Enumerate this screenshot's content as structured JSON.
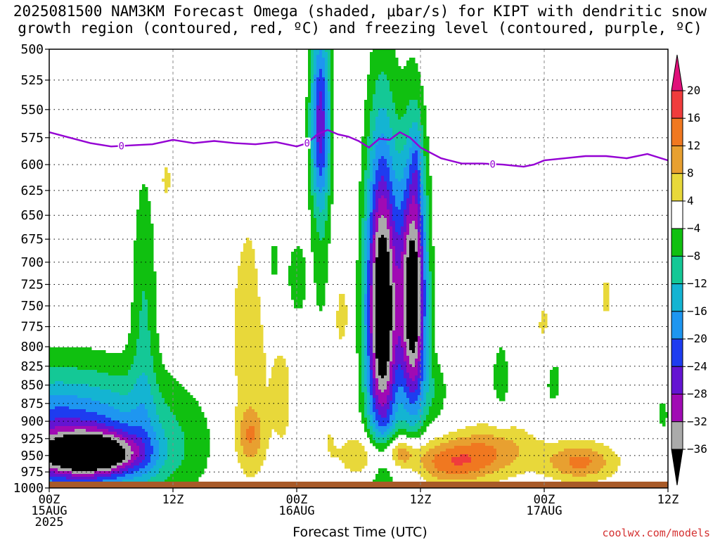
{
  "chart_data": {
    "type": "heatmap",
    "title_line1": "2025081500 NAM3KM Forecast Omega (shaded, μbar/s) for KIPT with dendritic snow",
    "title_line2": "growth region (contoured, red, ºC) and freezing level (contoured, purple, ºC)",
    "xlabel": "Forecast Time (UTC)",
    "credit": "coolwx.com/models",
    "y_axis": {
      "quantity": "pressure (mb)",
      "ticks": [
        500,
        525,
        550,
        575,
        600,
        625,
        650,
        675,
        700,
        725,
        750,
        775,
        800,
        825,
        850,
        875,
        900,
        925,
        950,
        975,
        1000
      ],
      "ylim": [
        500,
        1000
      ],
      "scale": "log",
      "inverted": true
    },
    "x_axis": {
      "range_hours": [
        0,
        60
      ],
      "ticks": [
        {
          "hour": 0,
          "lines": [
            "00Z",
            "15AUG",
            "2025"
          ]
        },
        {
          "hour": 12,
          "lines": [
            "12Z"
          ]
        },
        {
          "hour": 24,
          "lines": [
            "00Z",
            "16AUG"
          ]
        },
        {
          "hour": 36,
          "lines": [
            "12Z"
          ]
        },
        {
          "hour": 48,
          "lines": [
            "00Z",
            "17AUG"
          ]
        },
        {
          "hour": 60,
          "lines": [
            "12Z"
          ]
        }
      ]
    },
    "grid": true,
    "colorbar": {
      "position": "right",
      "labels": [
        "20",
        "16",
        "12",
        "8",
        "4",
        "−4",
        "−8",
        "−12",
        "−16",
        "−20",
        "−24",
        "−28",
        "−32",
        "−36"
      ],
      "bins": [
        {
          "lo": 20,
          "hi": null,
          "color": "#e0107a"
        },
        {
          "lo": 16,
          "hi": 20,
          "color": "#f03c3c"
        },
        {
          "lo": 12,
          "hi": 16,
          "color": "#f07820"
        },
        {
          "lo": 8,
          "hi": 12,
          "color": "#e8a030"
        },
        {
          "lo": 4,
          "hi": 8,
          "color": "#e8d83a"
        },
        {
          "lo": -4,
          "hi": 4,
          "color": "#ffffff"
        },
        {
          "lo": -8,
          "hi": -4,
          "color": "#10c010"
        },
        {
          "lo": -12,
          "hi": -8,
          "color": "#14c896"
        },
        {
          "lo": -16,
          "hi": -12,
          "color": "#14b4d2"
        },
        {
          "lo": -20,
          "hi": -16,
          "color": "#1e96f0"
        },
        {
          "lo": -24,
          "hi": -20,
          "color": "#1e3cf0"
        },
        {
          "lo": -28,
          "hi": -24,
          "color": "#6414d2"
        },
        {
          "lo": -32,
          "hi": -28,
          "color": "#a00ab4"
        },
        {
          "lo": -36,
          "hi": -32,
          "color": "#aaaaaa"
        },
        {
          "lo": null,
          "hi": -36,
          "color": "#000000"
        }
      ]
    },
    "freezing_level": {
      "color": "#9400d3",
      "label": "0",
      "points": [
        [
          0,
          570
        ],
        [
          2,
          575
        ],
        [
          4,
          580
        ],
        [
          6,
          583
        ],
        [
          8,
          582
        ],
        [
          10,
          581
        ],
        [
          11,
          579
        ],
        [
          12,
          577
        ],
        [
          14,
          580
        ],
        [
          16,
          578
        ],
        [
          18,
          580
        ],
        [
          20,
          581
        ],
        [
          22,
          579
        ],
        [
          24,
          583
        ],
        [
          25,
          580
        ],
        [
          26,
          572
        ],
        [
          27,
          568
        ],
        [
          28,
          572
        ],
        [
          29,
          574
        ],
        [
          30,
          578
        ],
        [
          31,
          584
        ],
        [
          32,
          576
        ],
        [
          33,
          577
        ],
        [
          34,
          570
        ],
        [
          35,
          575
        ],
        [
          36,
          584
        ],
        [
          38,
          594
        ],
        [
          40,
          599
        ],
        [
          42,
          599
        ],
        [
          44,
          600
        ],
        [
          46,
          602
        ],
        [
          47,
          600
        ],
        [
          48,
          596
        ],
        [
          50,
          594
        ],
        [
          52,
          592
        ],
        [
          54,
          592
        ],
        [
          56,
          594
        ],
        [
          58,
          590
        ],
        [
          60,
          596
        ]
      ],
      "label_hours": [
        7,
        25,
        43
      ]
    },
    "omega_blobs": [
      {
        "t": 1.0,
        "p": 930,
        "wt": 11,
        "hp": 95,
        "peak": -26
      },
      {
        "t": 4.0,
        "p": 948,
        "wt": 4.5,
        "hp": 30,
        "peak": -32
      },
      {
        "t": 9.2,
        "p": 760,
        "wt": 1.3,
        "hp": 170,
        "peak": -8
      },
      {
        "t": 11.3,
        "p": 615,
        "wt": 0.8,
        "hp": 30,
        "peak": 5
      },
      {
        "t": 19.3,
        "p": 840,
        "wt": 2.5,
        "hp": 260,
        "peak": 6
      },
      {
        "t": 19.5,
        "p": 920,
        "wt": 1.3,
        "hp": 40,
        "peak": 9
      },
      {
        "t": 22.7,
        "p": 870,
        "wt": 1.2,
        "hp": 90,
        "peak": 5
      },
      {
        "t": 21.7,
        "p": 700,
        "wt": 0.9,
        "hp": 60,
        "peak": -6
      },
      {
        "t": 24.0,
        "p": 720,
        "wt": 1.3,
        "hp": 60,
        "peak": -6
      },
      {
        "t": 26.3,
        "p": 560,
        "wt": 1.0,
        "hp": 85,
        "peak": -26
      },
      {
        "t": 26.6,
        "p": 740,
        "wt": 1.0,
        "hp": 120,
        "peak": -8
      },
      {
        "t": 27.0,
        "p": 830,
        "wt": 1.2,
        "hp": 160,
        "peak": 6
      },
      {
        "t": 28.5,
        "p": 760,
        "wt": 0.7,
        "hp": 40,
        "peak": 5
      },
      {
        "t": 30.5,
        "p": 950,
        "wt": 2.2,
        "hp": 35,
        "peak": 9
      },
      {
        "t": 32.3,
        "p": 755,
        "wt": 1.6,
        "hp": 180,
        "peak": -45
      },
      {
        "t": 35.3,
        "p": 740,
        "wt": 1.3,
        "hp": 150,
        "peak": -42
      },
      {
        "t": 35.6,
        "p": 600,
        "wt": 0.5,
        "hp": 40,
        "peak": -6
      },
      {
        "t": 37.4,
        "p": 860,
        "wt": 1.5,
        "hp": 50,
        "peak": -6
      },
      {
        "t": 39.0,
        "p": 960,
        "wt": 4.0,
        "hp": 35,
        "peak": 14
      },
      {
        "t": 34.0,
        "p": 945,
        "wt": 2.0,
        "hp": 25,
        "peak": 13
      },
      {
        "t": 43.5,
        "p": 940,
        "wt": 4.0,
        "hp": 40,
        "peak": 9
      },
      {
        "t": 43.8,
        "p": 840,
        "wt": 1.0,
        "hp": 60,
        "peak": -6
      },
      {
        "t": 48.0,
        "p": 780,
        "wt": 1.2,
        "hp": 60,
        "peak": 5
      },
      {
        "t": 48.8,
        "p": 840,
        "wt": 1.2,
        "hp": 50,
        "peak": -6
      },
      {
        "t": 51.5,
        "p": 960,
        "wt": 3.5,
        "hp": 30,
        "peak": 13
      },
      {
        "t": 54.0,
        "p": 740,
        "wt": 0.6,
        "hp": 40,
        "peak": 5
      },
      {
        "t": 59.5,
        "p": 890,
        "wt": 0.6,
        "hp": 25,
        "peak": -6
      }
    ]
  }
}
